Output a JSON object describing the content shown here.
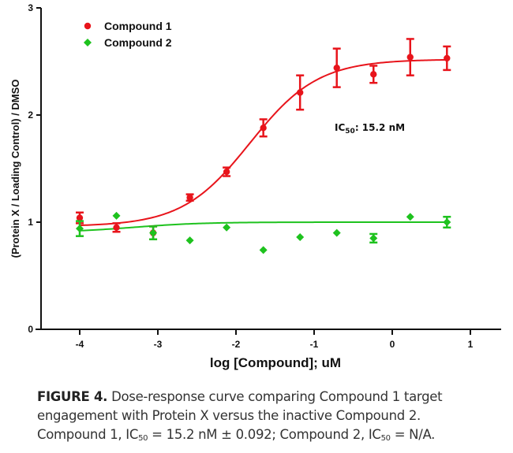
{
  "chart_data": {
    "type": "scatter",
    "title": "",
    "xlabel": "log [Compound]; uM",
    "ylabel": "(Protein X / Loading  Control) / DMSO",
    "xlim": [
      -4.5,
      1.4
    ],
    "ylim": [
      0,
      3
    ],
    "xticks": [
      -4,
      -3,
      -2,
      -1,
      0,
      1
    ],
    "xtick_labels": [
      "-4",
      "-3",
      "-2",
      "-1",
      "0",
      "1"
    ],
    "yticks": [
      0,
      1,
      2,
      3
    ],
    "ytick_labels": [
      "0",
      "1",
      "2",
      "3"
    ],
    "grid": false,
    "legend_position": "top-left",
    "series": [
      {
        "name": "Compound 1",
        "color": "#e8141b",
        "marker": "circle",
        "x": [
          -4,
          -3.53,
          -3.06,
          -2.59,
          -2.12,
          -1.65,
          -1.18,
          -0.71,
          -0.24,
          0.23,
          0.7
        ],
        "y": [
          1.04,
          0.95,
          0.9,
          1.23,
          1.47,
          1.88,
          2.21,
          2.44,
          2.38,
          2.54,
          2.53
        ],
        "error": [
          0.05,
          0.04,
          0.06,
          0.03,
          0.04,
          0.08,
          0.16,
          0.18,
          0.08,
          0.17,
          0.11
        ],
        "fit": {
          "model": "sigmoidal dose-response",
          "bottom": 0.96,
          "top": 2.52,
          "logIC50": -1.82,
          "hill": 1.0
        }
      },
      {
        "name": "Compound 2",
        "color": "#1ec21e",
        "marker": "diamond",
        "x": [
          -4,
          -3.53,
          -3.06,
          -2.59,
          -2.12,
          -1.65,
          -1.18,
          -0.71,
          -0.24,
          0.23,
          0.7
        ],
        "y": [
          0.94,
          1.06,
          0.9,
          0.83,
          0.95,
          0.74,
          0.86,
          0.9,
          0.85,
          1.05,
          1.0
        ],
        "error": [
          0.07,
          0,
          0.06,
          0,
          0,
          0,
          0,
          0,
          0.04,
          0,
          0.05
        ],
        "fit": {
          "model": "sigmoidal dose-response",
          "bottom": 0.905,
          "top": 1.0,
          "logIC50": -3.3,
          "hill": 1.0
        }
      }
    ],
    "annotations": [
      {
        "text_main": "IC",
        "text_sub": "50",
        "text_rest": ": 15.2  nM",
        "x": -0.75,
        "y": 1.88
      }
    ]
  },
  "caption": {
    "figure_label": "FIGURE 4.",
    "line1_rest": " Dose-response curve comparing Compound 1 target",
    "line2": "engagement with Protein X versus the inactive Compound 2.",
    "line3_a": "Compound 1, IC",
    "line3_sub1": "50",
    "line3_b": " = 15.2 nM ± 0.092; Compound 2, IC",
    "line3_sub2": "50",
    "line3_c": " = N/A."
  }
}
